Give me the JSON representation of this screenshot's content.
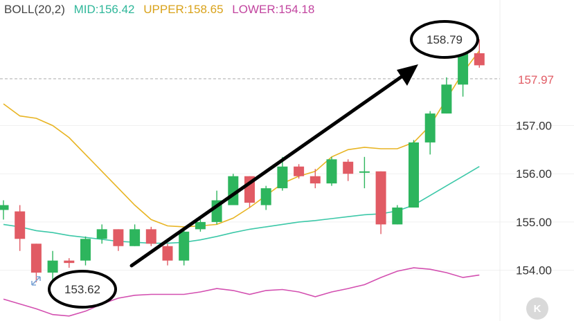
{
  "legend": {
    "indicator": "BOLL(20,2)",
    "mid": "MID:156.42",
    "upper": "UPPER:158.65",
    "lower": "LOWER:154.18"
  },
  "colors": {
    "up": "#2db55d",
    "down": "#e15b64",
    "mid_line": "#3cc8a8",
    "upper_line": "#e8b422",
    "lower_line": "#d34fb0",
    "arrow": "#000000"
  },
  "icons": {
    "fullscreen": "diagonal-arrows-icon",
    "k_button": "k-icon"
  },
  "annotations": {
    "low_label": "153.62",
    "high_label": "158.79"
  },
  "k_button_label": "K",
  "chart_data": {
    "type": "candlestick",
    "title": "",
    "y_ticks": [
      {
        "value": 157.0,
        "label": "157.00"
      },
      {
        "value": 156.0,
        "label": "156.00"
      },
      {
        "value": 155.0,
        "label": "155.00"
      },
      {
        "value": 154.0,
        "label": "154.00"
      }
    ],
    "current_price": {
      "value": 157.97,
      "label": "157.97"
    },
    "ylim": [
      153.5,
      159.2
    ],
    "candles": [
      {
        "o": 155.25,
        "h": 155.45,
        "l": 155.05,
        "c": 155.35
      },
      {
        "o": 155.22,
        "h": 155.35,
        "l": 154.4,
        "c": 154.65
      },
      {
        "o": 154.55,
        "h": 154.55,
        "l": 153.75,
        "c": 153.95
      },
      {
        "o": 153.95,
        "h": 154.4,
        "l": 153.7,
        "c": 154.2
      },
      {
        "o": 154.2,
        "h": 154.25,
        "l": 154.05,
        "c": 154.15
      },
      {
        "o": 154.2,
        "h": 154.7,
        "l": 154.1,
        "c": 154.65
      },
      {
        "o": 154.65,
        "h": 154.95,
        "l": 154.55,
        "c": 154.85
      },
      {
        "o": 154.85,
        "h": 154.85,
        "l": 154.4,
        "c": 154.5
      },
      {
        "o": 154.5,
        "h": 154.95,
        "l": 154.5,
        "c": 154.85
      },
      {
        "o": 154.85,
        "h": 154.9,
        "l": 154.5,
        "c": 154.55
      },
      {
        "o": 154.5,
        "h": 154.55,
        "l": 154.1,
        "c": 154.2
      },
      {
        "o": 154.2,
        "h": 154.85,
        "l": 154.1,
        "c": 154.8
      },
      {
        "o": 154.85,
        "h": 155.05,
        "l": 154.8,
        "c": 155.0
      },
      {
        "o": 155.0,
        "h": 155.65,
        "l": 154.95,
        "c": 155.45
      },
      {
        "o": 155.35,
        "h": 156.0,
        "l": 155.35,
        "c": 155.95
      },
      {
        "o": 155.95,
        "h": 155.95,
        "l": 155.3,
        "c": 155.4
      },
      {
        "o": 155.35,
        "h": 155.75,
        "l": 155.25,
        "c": 155.7
      },
      {
        "o": 155.7,
        "h": 156.35,
        "l": 155.65,
        "c": 156.15
      },
      {
        "o": 156.15,
        "h": 156.2,
        "l": 155.9,
        "c": 155.95
      },
      {
        "o": 155.95,
        "h": 156.1,
        "l": 155.7,
        "c": 155.8
      },
      {
        "o": 155.8,
        "h": 156.35,
        "l": 155.75,
        "c": 156.3
      },
      {
        "o": 156.25,
        "h": 156.3,
        "l": 155.85,
        "c": 156.0
      },
      {
        "o": 156.05,
        "h": 156.35,
        "l": 155.7,
        "c": 156.05
      },
      {
        "o": 156.05,
        "h": 156.05,
        "l": 154.75,
        "c": 154.95
      },
      {
        "o": 154.95,
        "h": 155.35,
        "l": 154.95,
        "c": 155.3
      },
      {
        "o": 155.3,
        "h": 156.7,
        "l": 155.3,
        "c": 156.65
      },
      {
        "o": 156.65,
        "h": 157.3,
        "l": 156.4,
        "c": 157.25
      },
      {
        "o": 157.25,
        "h": 158.0,
        "l": 157.25,
        "c": 157.85
      },
      {
        "o": 157.85,
        "h": 158.55,
        "l": 157.6,
        "c": 158.5
      },
      {
        "o": 158.5,
        "h": 158.79,
        "l": 158.2,
        "c": 158.25
      }
    ],
    "bands": {
      "mid": [
        154.95,
        154.9,
        154.82,
        154.78,
        154.72,
        154.68,
        154.64,
        154.6,
        154.58,
        154.56,
        154.56,
        154.58,
        154.63,
        154.7,
        154.78,
        154.85,
        154.9,
        154.95,
        155.0,
        155.03,
        155.07,
        155.11,
        155.15,
        155.17,
        155.23,
        155.35,
        155.55,
        155.75,
        155.95,
        156.15
      ],
      "upper": [
        157.45,
        157.2,
        157.15,
        157.0,
        156.75,
        156.4,
        156.05,
        155.7,
        155.35,
        155.05,
        154.92,
        154.9,
        154.92,
        154.95,
        155.08,
        155.3,
        155.55,
        155.8,
        155.95,
        156.05,
        156.35,
        156.5,
        156.55,
        156.52,
        156.52,
        156.65,
        157.0,
        157.55,
        158.1,
        158.55
      ],
      "lower": [
        153.4,
        153.3,
        153.2,
        153.08,
        153.05,
        153.15,
        153.3,
        153.42,
        153.48,
        153.5,
        153.5,
        153.5,
        153.55,
        153.62,
        153.58,
        153.5,
        153.58,
        153.6,
        153.55,
        153.45,
        153.55,
        153.62,
        153.7,
        153.85,
        153.98,
        154.05,
        154.02,
        153.95,
        153.85,
        153.9
      ]
    }
  }
}
